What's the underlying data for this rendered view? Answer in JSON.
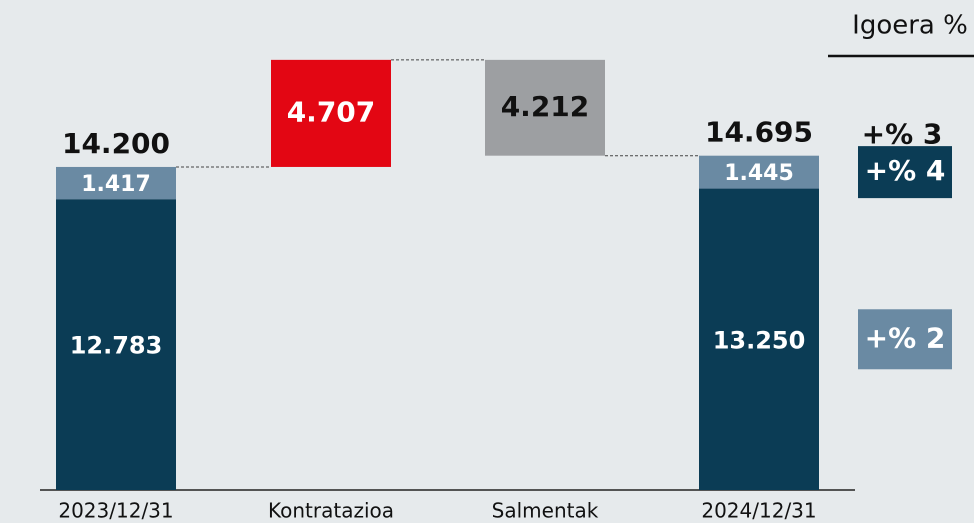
{
  "chart_data": {
    "type": "waterfall",
    "categories": [
      "2023/12/31",
      "Kontratazioa",
      "Salmentak",
      "2024/12/31"
    ],
    "series": [
      {
        "color": "#0b3c55",
        "values": [
          12783,
          null,
          null,
          13250
        ],
        "value_labels": [
          "12.783",
          null,
          null,
          "13.250"
        ]
      },
      {
        "color": "#6a8aa3",
        "values": [
          1417,
          null,
          null,
          1445
        ],
        "value_labels": [
          "1.417",
          null,
          null,
          "1.445"
        ]
      }
    ],
    "deltas": {
      "values": [
        null,
        4707,
        -4212,
        null
      ],
      "value_labels": [
        null,
        "4.707",
        "4.212",
        null
      ],
      "colors": [
        null,
        "#e30613",
        "#9d9fa2",
        null
      ]
    },
    "totals": {
      "values": [
        14200,
        null,
        null,
        14695
      ],
      "value_labels": [
        "14.200",
        null,
        null,
        "14.695"
      ]
    },
    "side_header": "Igoera %",
    "side_badges": [
      {
        "label": "+% 3"
      },
      {
        "label": "+% 2",
        "color": "#6a8aa3"
      },
      {
        "label": "+% 4",
        "color": "#0b3c55"
      }
    ]
  }
}
